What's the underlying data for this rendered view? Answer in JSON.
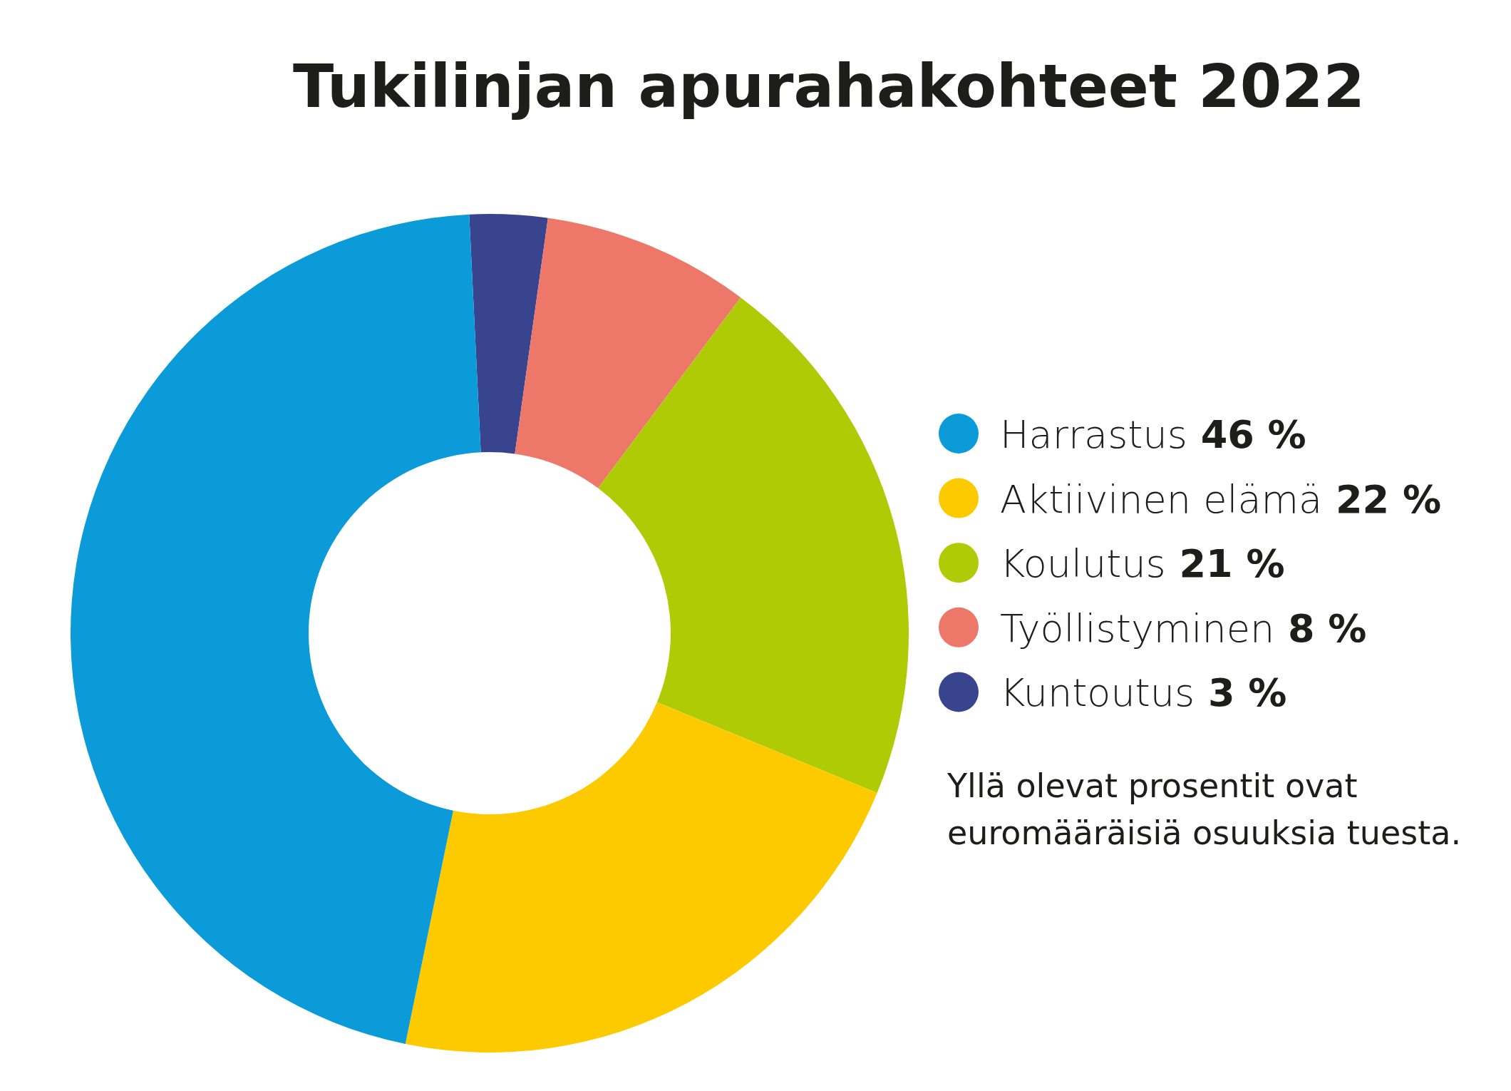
{
  "chart_data": {
    "type": "donut",
    "title": "Tukilinjan apurahakohteet 2022",
    "categories": [
      "Harrastus",
      "Aktiivinen elämä",
      "Koulutus",
      "Työllistyminen",
      "Kuntoutus"
    ],
    "values": [
      46,
      22,
      21,
      8,
      3
    ],
    "value_labels": [
      "46 %",
      "22 %",
      "21 %",
      "8 %",
      "3 %"
    ],
    "colors": [
      "#0a9bd8",
      "#fdca00",
      "#aecb06",
      "#ed7769",
      "#39448f"
    ],
    "legend": "right",
    "annotations": [
      "Yllä olevat prosentit ovat euromääräisiä osuuksia tuesta."
    ]
  }
}
